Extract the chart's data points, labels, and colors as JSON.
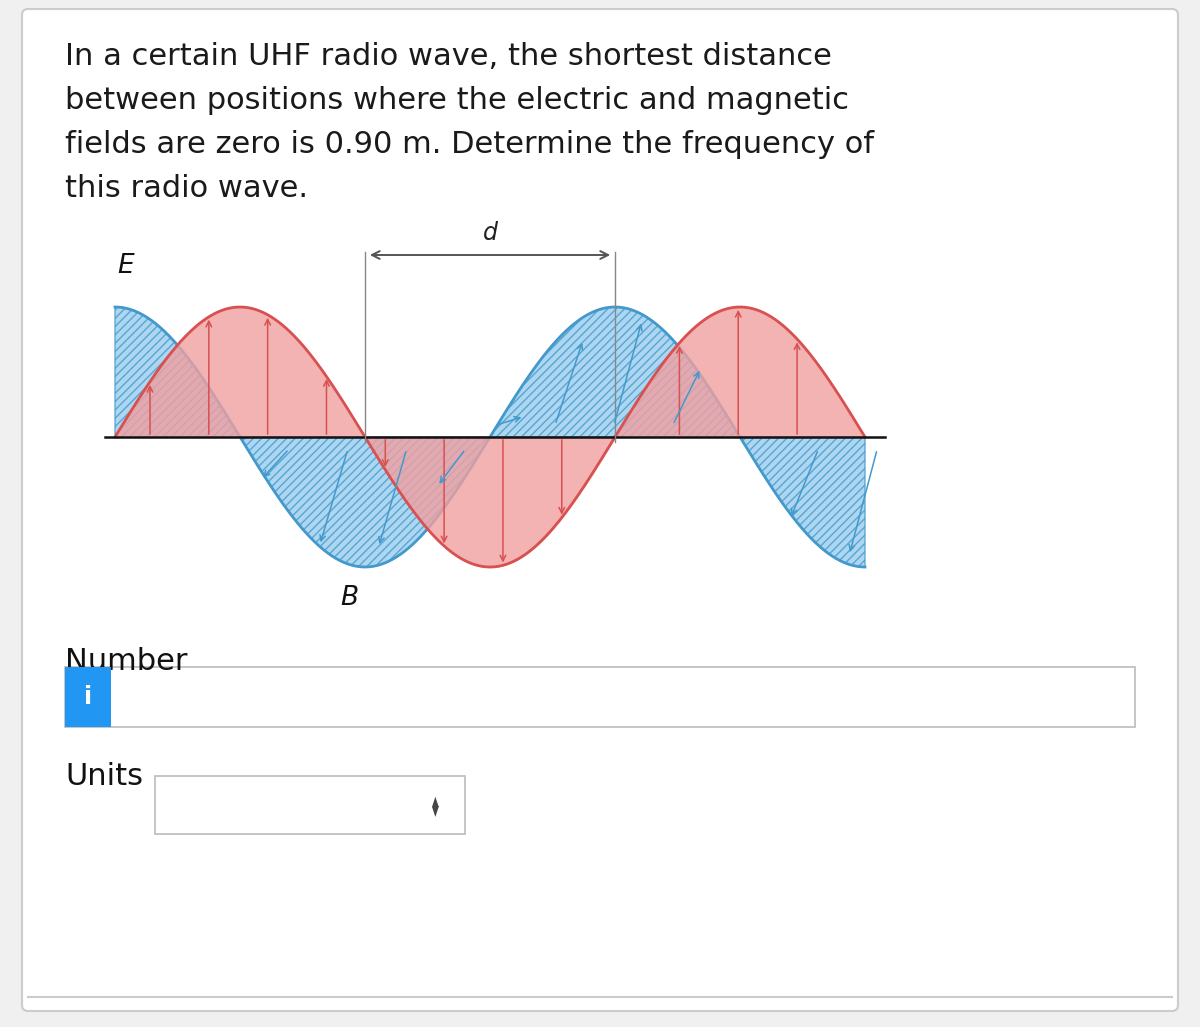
{
  "title_text": "In a certain UHF radio wave, the shortest distance\nbetween positions where the electric and magnetic\nfields are zero is 0.90 m. Determine the frequency of\nthis radio wave.",
  "title_fontsize": 22,
  "title_color": "#1a1a1a",
  "bg_color": "#f0f0f0",
  "card_color": "#ffffff",
  "e_color": "#d95050",
  "e_fill": "#f0a0a0",
  "b_color": "#4499cc",
  "b_fill": "#99ccee",
  "axis_color": "#111111",
  "e_label": "E",
  "b_label": "B",
  "d_label": "d",
  "number_label": "Number",
  "units_label": "Units",
  "info_btn_color": "#2196F3",
  "info_btn_text": "i",
  "input_border": "#bbbbbb",
  "chevron": "◄►"
}
